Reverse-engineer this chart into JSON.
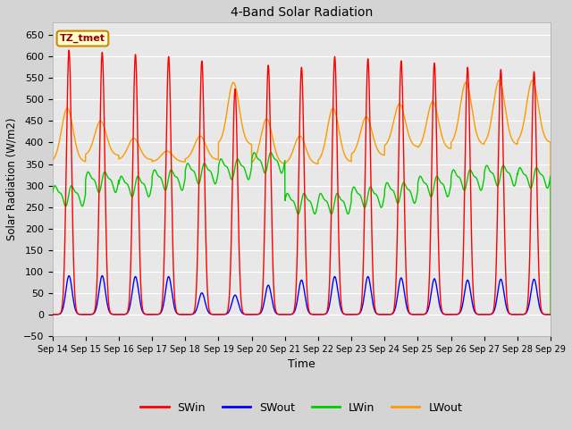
{
  "title": "4-Band Solar Radiation",
  "xlabel": "Time",
  "ylabel": "Solar Radiation (W/m2)",
  "ylim": [
    -50,
    680
  ],
  "colors": {
    "SWin": "#ff0000",
    "SWout": "#0000ff",
    "LWin": "#00cc00",
    "LWout": "#ff9900"
  },
  "fig_bg_color": "#d4d4d4",
  "plot_bg_color": "#e8e8e8",
  "annotation_box": {
    "text": "TZ_tmet",
    "bg": "#ffffcc",
    "border": "#cc8800"
  },
  "n_days": 15,
  "start_day": 14,
  "line_width": 1.0,
  "SWin_peaks": [
    615,
    610,
    605,
    600,
    590,
    525,
    580,
    575,
    600,
    595,
    590,
    585,
    575,
    570,
    565
  ],
  "SWout_peaks": [
    90,
    90,
    88,
    88,
    50,
    45,
    68,
    80,
    88,
    88,
    85,
    83,
    80,
    82,
    82
  ],
  "LWin_base": [
    278,
    310,
    300,
    315,
    330,
    340,
    355,
    260,
    260,
    275,
    285,
    300,
    315,
    325,
    320
  ],
  "LWout_peak": [
    480,
    450,
    410,
    380,
    415,
    540,
    455,
    415,
    480,
    460,
    490,
    495,
    540,
    545,
    545
  ],
  "LWout_base": [
    355,
    370,
    360,
    355,
    360,
    395,
    350,
    350,
    355,
    370,
    390,
    385,
    395,
    395,
    400
  ]
}
